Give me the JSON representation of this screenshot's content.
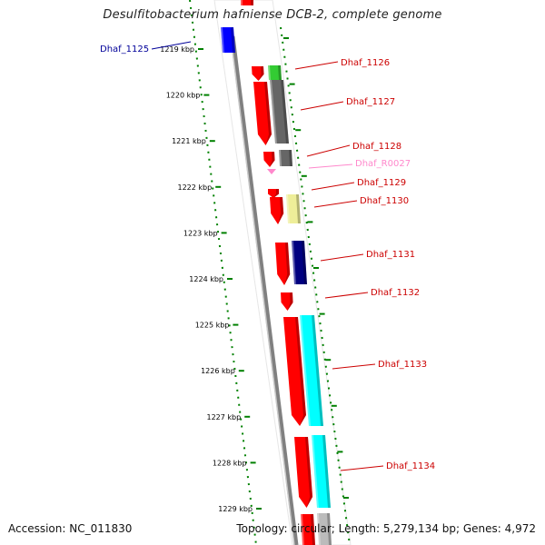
{
  "title": "Desulfitobacterium hafniense DCB-2, complete genome",
  "accession_text": "Accession: NC_011830",
  "summary_text": "Topology: circular; Length: 5,279,134 bp; Genes: 4,972",
  "ruler": {
    "ticks": [
      {
        "label": "1219 kbp"
      },
      {
        "label": "1220 kbp"
      },
      {
        "label": "1221 kbp"
      },
      {
        "label": "1222 kbp"
      },
      {
        "label": "1223 kbp"
      },
      {
        "label": "1224 kbp"
      },
      {
        "label": "1225 kbp"
      },
      {
        "label": "1226 kbp"
      },
      {
        "label": "1227 kbp"
      },
      {
        "label": "1228 kbp"
      },
      {
        "label": "1229 kbp"
      }
    ]
  },
  "colors": {
    "forward_cds": "#ff0000",
    "rna": "#ff88cc",
    "backbone": "#808080",
    "dotted_guide": "#008000",
    "label_gene": "#cc0000",
    "label_rna": "#ff88cc",
    "label_1125": "#000099"
  },
  "genes": [
    {
      "name": "Dhaf_1125",
      "label_color": "#000099",
      "track_color": "#0000ff"
    },
    {
      "name": "Dhaf_1126",
      "label_color": "#cc0000",
      "track_color": "#33cc33"
    },
    {
      "name": "Dhaf_1127",
      "label_color": "#cc0000",
      "track_color": "#666666"
    },
    {
      "name": "Dhaf_1128",
      "label_color": "#cc0000",
      "track_color": "#666666"
    },
    {
      "name": "Dhaf_R0027",
      "label_color": "#ff88cc",
      "track_color": "#ff88cc"
    },
    {
      "name": "Dhaf_1129",
      "label_color": "#cc0000",
      "track_color": "#ff0000"
    },
    {
      "name": "Dhaf_1130",
      "label_color": "#cc0000",
      "track_color": "#eeee99"
    },
    {
      "name": "Dhaf_1131",
      "label_color": "#cc0000",
      "track_color": "#000080"
    },
    {
      "name": "Dhaf_1132",
      "label_color": "#cc0000",
      "track_color": "#ff0000"
    },
    {
      "name": "Dhaf_1133",
      "label_color": "#cc0000",
      "track_color": "#00ffff"
    },
    {
      "name": "Dhaf_1134",
      "label_color": "#cc0000",
      "track_color": "#00ffff"
    }
  ]
}
